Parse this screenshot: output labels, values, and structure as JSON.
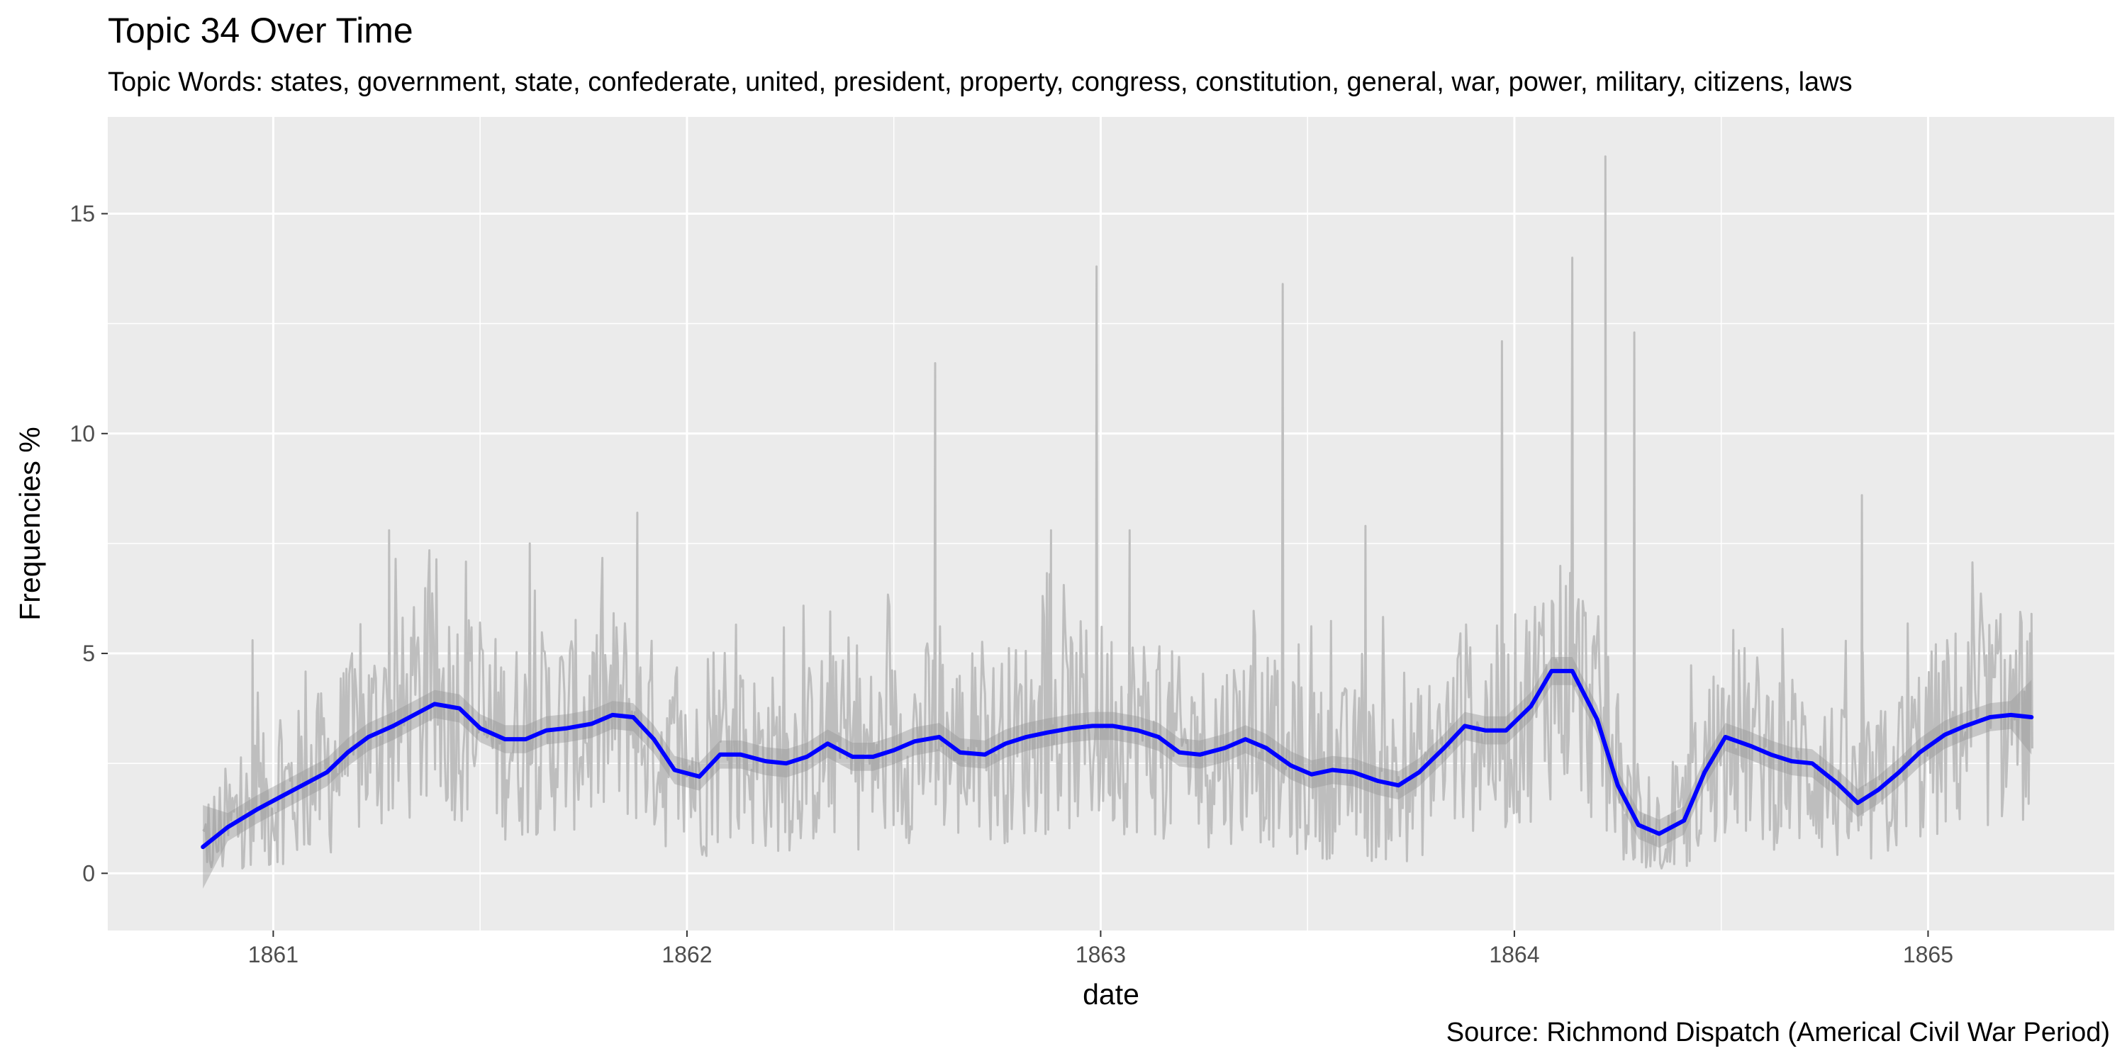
{
  "chart_data": {
    "type": "line",
    "title": "Topic 34 Over Time",
    "subtitle": "Topic Words: states, government, state, confederate, united, president, property, congress, constitution, general, war, power, military, citizens, laws",
    "caption": "Source: Richmond Dispatch (Americal Civil War Period)",
    "xlabel": "date",
    "ylabel": "Frequencies %",
    "xlim": [
      1860.6,
      1865.45
    ],
    "ylim": [
      -1.3,
      17.2
    ],
    "x_ticks": [
      1861,
      1862,
      1863,
      1864,
      1865
    ],
    "x_tick_labels": [
      "1861",
      "1862",
      "1863",
      "1864",
      "1865"
    ],
    "y_ticks": [
      0,
      5,
      10,
      15
    ],
    "y_tick_labels": [
      "0",
      "5",
      "10",
      "15"
    ],
    "grid": true,
    "background": "#ebebeb",
    "series": [
      {
        "role": "raw",
        "color": "#bebebe",
        "note": "dense daily series; representative peaks as [year, %]",
        "peaks": [
          [
            1860.95,
            5.3
          ],
          [
            1861.28,
            7.8
          ],
          [
            1861.62,
            7.5
          ],
          [
            1861.88,
            8.2
          ],
          [
            1862.6,
            11.6
          ],
          [
            1862.88,
            7.8
          ],
          [
            1862.99,
            13.8
          ],
          [
            1863.07,
            7.8
          ],
          [
            1863.44,
            13.4
          ],
          [
            1863.64,
            7.9
          ],
          [
            1863.97,
            12.1
          ],
          [
            1864.14,
            14.0
          ],
          [
            1864.22,
            16.3
          ],
          [
            1864.29,
            12.3
          ],
          [
            1864.84,
            8.6
          ],
          [
            1865.25,
            5.9
          ]
        ]
      },
      {
        "role": "smooth",
        "color": "#0000ff",
        "band_color": "#999999",
        "x": [
          1860.83,
          1860.89,
          1860.96,
          1861.02,
          1861.08,
          1861.13,
          1861.18,
          1861.23,
          1861.29,
          1861.34,
          1861.39,
          1861.45,
          1861.5,
          1861.56,
          1861.61,
          1861.66,
          1861.71,
          1861.77,
          1861.82,
          1861.87,
          1861.92,
          1861.97,
          1862.03,
          1862.08,
          1862.13,
          1862.19,
          1862.24,
          1862.29,
          1862.34,
          1862.4,
          1862.45,
          1862.5,
          1862.55,
          1862.61,
          1862.66,
          1862.72,
          1862.77,
          1862.82,
          1862.87,
          1862.93,
          1862.98,
          1863.03,
          1863.09,
          1863.14,
          1863.19,
          1863.24,
          1863.3,
          1863.35,
          1863.4,
          1863.46,
          1863.51,
          1863.56,
          1863.61,
          1863.67,
          1863.72,
          1863.77,
          1863.83,
          1863.88,
          1863.93,
          1863.98,
          1864.04,
          1864.09,
          1864.14,
          1864.2,
          1864.25,
          1864.3,
          1864.35,
          1864.41,
          1864.46,
          1864.51,
          1864.57,
          1864.62,
          1864.67,
          1864.72,
          1864.78,
          1864.83,
          1864.88,
          1864.93,
          1864.98,
          1865.04,
          1865.09,
          1865.15,
          1865.2,
          1865.25
        ],
        "y": [
          0.6,
          1.05,
          1.45,
          1.75,
          2.05,
          2.3,
          2.75,
          3.1,
          3.35,
          3.6,
          3.85,
          3.75,
          3.3,
          3.05,
          3.05,
          3.25,
          3.3,
          3.4,
          3.6,
          3.55,
          3.05,
          2.35,
          2.2,
          2.7,
          2.7,
          2.55,
          2.5,
          2.65,
          2.95,
          2.65,
          2.65,
          2.8,
          3.0,
          3.1,
          2.75,
          2.7,
          2.95,
          3.1,
          3.2,
          3.3,
          3.35,
          3.35,
          3.25,
          3.1,
          2.75,
          2.7,
          2.85,
          3.05,
          2.85,
          2.45,
          2.25,
          2.35,
          2.3,
          2.1,
          2.0,
          2.3,
          2.85,
          3.35,
          3.25,
          3.25,
          3.8,
          4.6,
          4.6,
          3.5,
          2.0,
          1.1,
          0.9,
          1.2,
          2.3,
          3.1,
          2.9,
          2.7,
          2.55,
          2.5,
          2.05,
          1.6,
          1.9,
          2.3,
          2.75,
          3.15,
          3.35,
          3.55,
          3.6,
          3.55
        ]
      }
    ]
  }
}
